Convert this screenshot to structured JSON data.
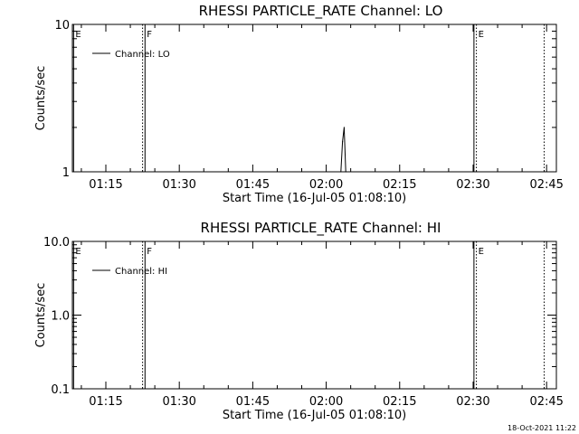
{
  "chart_data": [
    {
      "type": "line",
      "title": "RHESSI PARTICLE_RATE Channel: LO",
      "xlabel": "Start Time (16-Jul-05 01:08:10)",
      "ylabel": "Counts/sec",
      "yscale": "log",
      "xlim": [
        "01:08:10",
        "02:47:00"
      ],
      "ylim": [
        1,
        10
      ],
      "xticks": [
        "01:15",
        "01:30",
        "01:45",
        "02:00",
        "02:15",
        "02:30",
        "02:45"
      ],
      "yticks": [
        {
          "value": 1,
          "label": "1"
        },
        {
          "value": 10,
          "label": "10"
        }
      ],
      "legend": {
        "position": "top-left",
        "entries": [
          "Channel: LO"
        ]
      },
      "series": [
        {
          "name": "Channel: LO",
          "points": [
            {
              "t": "02:03:00",
              "y": 1.0
            },
            {
              "t": "02:03:20",
              "y": 1.6
            },
            {
              "t": "02:03:40",
              "y": 2.0
            },
            {
              "t": "02:04:00",
              "y": 1.0
            }
          ]
        }
      ],
      "markers": [
        {
          "t": "01:08:25",
          "label": "E",
          "style": "solid"
        },
        {
          "t": "01:22:30",
          "label": "",
          "style": "dotted"
        },
        {
          "t": "01:23:00",
          "label": "F",
          "style": "solid"
        },
        {
          "t": "02:30:10",
          "label": "",
          "style": "solid"
        },
        {
          "t": "02:30:40",
          "label": "E",
          "style": "dotted"
        },
        {
          "t": "02:44:30",
          "label": "",
          "style": "dotted"
        }
      ]
    },
    {
      "type": "line",
      "title": "RHESSI PARTICLE_RATE Channel: HI",
      "xlabel": "Start Time (16-Jul-05 01:08:10)",
      "ylabel": "Counts/sec",
      "yscale": "log",
      "xlim": [
        "01:08:10",
        "02:47:00"
      ],
      "ylim": [
        0.1,
        10
      ],
      "xticks": [
        "01:15",
        "01:30",
        "01:45",
        "02:00",
        "02:15",
        "02:30",
        "02:45"
      ],
      "yticks": [
        {
          "value": 0.1,
          "label": "0.1"
        },
        {
          "value": 1,
          "label": "1.0"
        },
        {
          "value": 10,
          "label": "10.0"
        }
      ],
      "legend": {
        "position": "top-left",
        "entries": [
          "Channel: HI"
        ]
      },
      "series": [
        {
          "name": "Channel: HI",
          "points": []
        }
      ],
      "markers": [
        {
          "t": "01:08:25",
          "label": "E",
          "style": "solid"
        },
        {
          "t": "01:22:30",
          "label": "",
          "style": "dotted"
        },
        {
          "t": "01:23:00",
          "label": "F",
          "style": "solid"
        },
        {
          "t": "02:30:10",
          "label": "",
          "style": "solid"
        },
        {
          "t": "02:30:40",
          "label": "E",
          "style": "dotted"
        },
        {
          "t": "02:44:30",
          "label": "",
          "style": "dotted"
        }
      ]
    }
  ],
  "footer": {
    "timestamp": "18-Oct-2021 11:22"
  }
}
